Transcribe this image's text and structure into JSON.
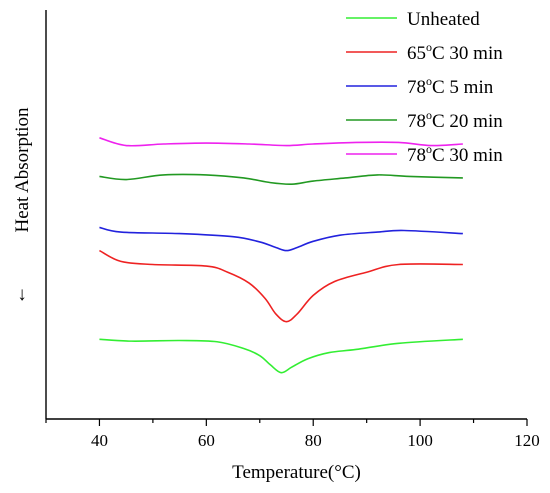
{
  "chart_data": {
    "type": "line",
    "xlabel": "Temperature(°C)",
    "ylabel": "Heat Absorption",
    "y_arrow": "↓",
    "xlim": [
      30,
      120
    ],
    "ylim": [
      0,
      1
    ],
    "x_ticks": [
      40,
      60,
      80,
      100,
      120
    ],
    "x_tick_labels": [
      "40",
      "60",
      "80",
      "100",
      "120"
    ],
    "grid": false,
    "legend_position": "top-right",
    "series": [
      {
        "name": "Unheated",
        "name_parts": [
          "",
          "",
          "Unheated"
        ],
        "color": "#33ee33",
        "x": [
          40,
          46,
          55,
          62,
          67,
          70,
          72,
          74,
          76,
          79,
          83,
          88,
          96,
          108
        ],
        "y": [
          0.258,
          0.252,
          0.254,
          0.25,
          0.228,
          0.205,
          0.175,
          0.15,
          0.168,
          0.195,
          0.215,
          0.225,
          0.245,
          0.258
        ]
      },
      {
        "name": "65°C 30 min",
        "name_parts": [
          "65",
          "o",
          "C 30 min"
        ],
        "color": "#ee2222",
        "x": [
          40,
          44,
          50,
          60,
          64,
          68,
          71,
          73,
          75,
          77,
          80,
          84,
          90,
          96,
          108
        ],
        "y": [
          0.545,
          0.51,
          0.5,
          0.495,
          0.475,
          0.44,
          0.39,
          0.34,
          0.315,
          0.34,
          0.4,
          0.445,
          0.475,
          0.5,
          0.5
        ]
      },
      {
        "name": "78°C 5 min",
        "name_parts": [
          "78",
          "o",
          "C 5 min"
        ],
        "color": "#2222dd",
        "x": [
          40,
          44,
          55,
          65,
          70,
          73,
          75,
          77,
          80,
          85,
          92,
          97,
          108
        ],
        "y": [
          0.62,
          0.605,
          0.6,
          0.59,
          0.573,
          0.555,
          0.545,
          0.555,
          0.575,
          0.595,
          0.605,
          0.61,
          0.6
        ]
      },
      {
        "name": "78°C 20 min",
        "name_parts": [
          "78",
          "o",
          "C 20 min"
        ],
        "color": "#229922",
        "x": [
          40,
          45,
          52,
          60,
          67,
          72,
          76,
          80,
          86,
          92,
          98,
          108
        ],
        "y": [
          0.785,
          0.775,
          0.79,
          0.79,
          0.78,
          0.765,
          0.76,
          0.77,
          0.78,
          0.79,
          0.785,
          0.78
        ]
      },
      {
        "name": "78°C 30 min",
        "name_parts": [
          "78",
          "o",
          "C 30 min"
        ],
        "color": "#ee22ee",
        "x": [
          40,
          45,
          52,
          60,
          68,
          75,
          80,
          88,
          96,
          102,
          108
        ],
        "y": [
          0.91,
          0.885,
          0.89,
          0.893,
          0.89,
          0.885,
          0.89,
          0.895,
          0.895,
          0.885,
          0.89
        ]
      }
    ]
  }
}
